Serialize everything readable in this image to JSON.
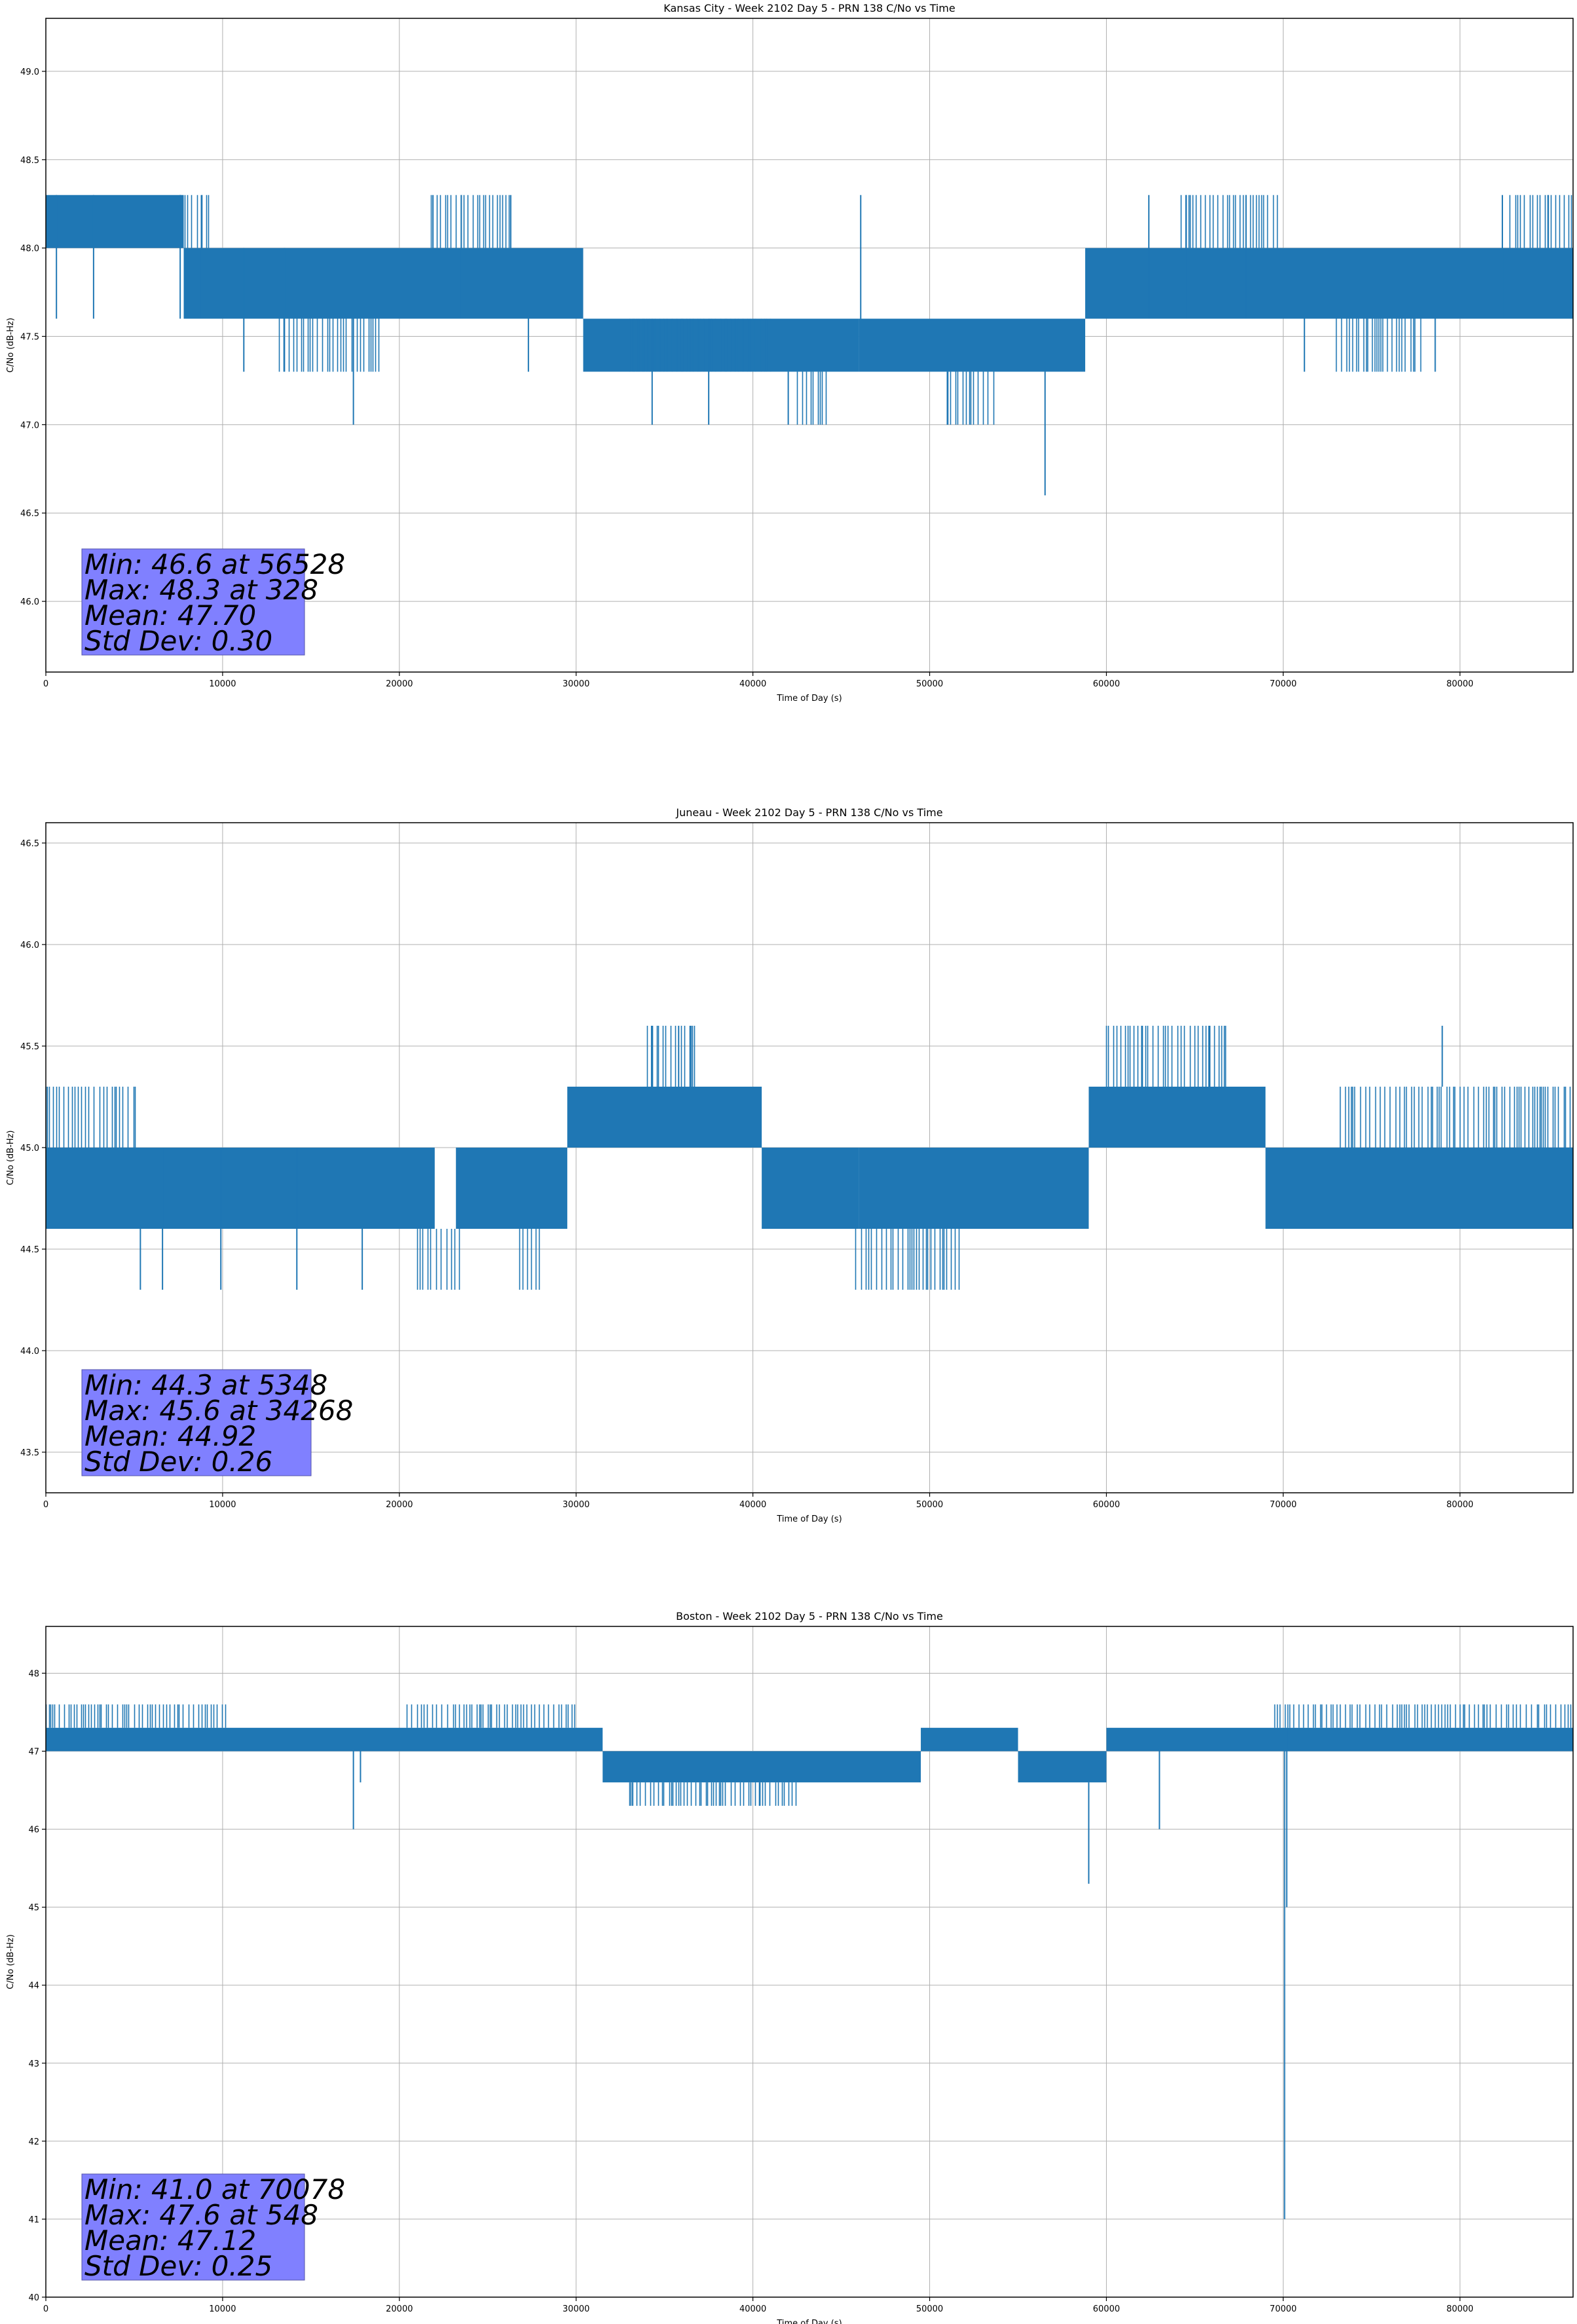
{
  "chart_data": [
    {
      "type": "line",
      "title": "Kansas City - Week 2102 Day 5 - PRN 138 C/No vs Time",
      "xlabel": "Time of Day (s)",
      "ylabel": "C/No (dB-Hz)",
      "xlim": [
        0,
        86400
      ],
      "ylim": [
        45.6,
        49.3
      ],
      "xticks": [
        0,
        10000,
        20000,
        30000,
        40000,
        50000,
        60000,
        70000,
        80000
      ],
      "xtick_labels": [
        "0",
        "10000",
        "20000",
        "30000",
        "40000",
        "50000",
        "60000",
        "70000",
        "80000"
      ],
      "yticks": [
        46.0,
        46.5,
        47.0,
        47.5,
        48.0,
        48.5,
        49.0
      ],
      "ytick_labels": [
        "46.0",
        "46.5",
        "47.0",
        "47.5",
        "48.0",
        "48.5",
        "49.0"
      ],
      "grid": true,
      "color": "#1f77b4",
      "series": [
        {
          "bands": [
            {
              "x0": 0,
              "x1": 7800,
              "lo": 48.0,
              "hi": 48.3
            },
            {
              "x0": 7800,
              "x1": 30400,
              "lo": 47.6,
              "hi": 48.0
            },
            {
              "x0": 30400,
              "x1": 46000,
              "lo": 47.3,
              "hi": 47.6
            },
            {
              "x0": 46000,
              "x1": 58800,
              "lo": 47.3,
              "hi": 47.6
            },
            {
              "x0": 58800,
              "x1": 86400,
              "lo": 47.6,
              "hi": 48.0
            }
          ],
          "spikes": [
            {
              "x": 600,
              "lo": 47.6,
              "hi": 48.3
            },
            {
              "x": 2700,
              "lo": 47.6,
              "hi": 48.3
            },
            {
              "x": 7600,
              "lo": 47.6,
              "hi": 48.3
            },
            {
              "x": 8800,
              "lo": 47.6,
              "hi": 48.3
            },
            {
              "x": 11200,
              "lo": 47.3,
              "hi": 48.0
            },
            {
              "x": 13500,
              "lo": 47.3,
              "hi": 48.0
            },
            {
              "x": 17400,
              "lo": 47.0,
              "hi": 47.6
            },
            {
              "x": 21900,
              "lo": 47.6,
              "hi": 48.3
            },
            {
              "x": 23500,
              "lo": 47.6,
              "hi": 48.3
            },
            {
              "x": 26300,
              "lo": 47.6,
              "hi": 48.3
            },
            {
              "x": 27300,
              "lo": 47.3,
              "hi": 47.6
            },
            {
              "x": 34300,
              "lo": 47.0,
              "hi": 47.6
            },
            {
              "x": 37500,
              "lo": 47.0,
              "hi": 47.6
            },
            {
              "x": 42000,
              "lo": 47.0,
              "hi": 47.3
            },
            {
              "x": 46100,
              "lo": 47.6,
              "hi": 48.3
            },
            {
              "x": 51000,
              "lo": 47.0,
              "hi": 47.3
            },
            {
              "x": 56528,
              "lo": 46.6,
              "hi": 47.3
            },
            {
              "x": 62400,
              "lo": 47.6,
              "hi": 48.3
            },
            {
              "x": 64500,
              "lo": 47.6,
              "hi": 48.3
            },
            {
              "x": 67900,
              "lo": 47.6,
              "hi": 48.3
            },
            {
              "x": 71200,
              "lo": 47.3,
              "hi": 47.6
            },
            {
              "x": 78600,
              "lo": 47.3,
              "hi": 47.6
            },
            {
              "x": 82400,
              "lo": 47.6,
              "hi": 48.3
            },
            {
              "x": 85000,
              "lo": 47.6,
              "hi": 48.3
            }
          ],
          "dense": [
            {
              "x0": 7600,
              "x1": 9300,
              "lo": 48.0,
              "hi": 48.3
            },
            {
              "x0": 13200,
              "x1": 19000,
              "lo": 47.3,
              "hi": 47.6
            },
            {
              "x0": 21800,
              "x1": 26400,
              "lo": 48.0,
              "hi": 48.3
            },
            {
              "x0": 33000,
              "x1": 41000,
              "lo": 47.3,
              "hi": 47.6
            },
            {
              "x0": 42500,
              "x1": 44300,
              "lo": 47.0,
              "hi": 47.3
            },
            {
              "x0": 51000,
              "x1": 53700,
              "lo": 47.0,
              "hi": 47.3
            },
            {
              "x0": 64200,
              "x1": 69800,
              "lo": 48.0,
              "hi": 48.3
            },
            {
              "x0": 73000,
              "x1": 77800,
              "lo": 47.3,
              "hi": 47.6
            },
            {
              "x0": 82800,
              "x1": 86400,
              "lo": 48.0,
              "hi": 48.3
            }
          ]
        }
      ],
      "stats": [
        "Min: 46.6 at 56528",
        "Max: 48.3 at 328",
        "Mean: 47.70",
        "Std Dev: 0.30"
      ]
    },
    {
      "type": "line",
      "title": "Juneau - Week 2102 Day 5 - PRN 138 C/No vs Time",
      "xlabel": "Time of Day (s)",
      "ylabel": "C/No (dB-Hz)",
      "xlim": [
        0,
        86400
      ],
      "ylim": [
        43.3,
        46.6
      ],
      "xticks": [
        0,
        10000,
        20000,
        30000,
        40000,
        50000,
        60000,
        70000,
        80000
      ],
      "xtick_labels": [
        "0",
        "10000",
        "20000",
        "30000",
        "40000",
        "50000",
        "60000",
        "70000",
        "80000"
      ],
      "yticks": [
        43.5,
        44.0,
        44.5,
        45.0,
        45.5,
        46.0,
        46.5
      ],
      "ytick_labels": [
        "43.5",
        "44.0",
        "44.5",
        "45.0",
        "45.5",
        "46.0",
        "46.5"
      ],
      "grid": true,
      "color": "#1f77b4",
      "series": [
        {
          "bands": [
            {
              "x0": 0,
              "x1": 22000,
              "lo": 44.6,
              "hi": 45.0
            },
            {
              "x0": 23200,
              "x1": 29500,
              "lo": 44.6,
              "hi": 45.0
            },
            {
              "x0": 29500,
              "x1": 40500,
              "lo": 45.0,
              "hi": 45.3
            },
            {
              "x0": 40500,
              "x1": 46000,
              "lo": 44.6,
              "hi": 45.0
            },
            {
              "x0": 46000,
              "x1": 59000,
              "lo": 44.6,
              "hi": 45.0
            },
            {
              "x0": 59000,
              "x1": 69000,
              "lo": 45.0,
              "hi": 45.3
            },
            {
              "x0": 69000,
              "x1": 86400,
              "lo": 44.6,
              "hi": 45.0
            }
          ],
          "spikes": [
            {
              "x": 5348,
              "lo": 44.3,
              "hi": 45.0
            },
            {
              "x": 6600,
              "lo": 44.3,
              "hi": 45.0
            },
            {
              "x": 9900,
              "lo": 44.3,
              "hi": 45.0
            },
            {
              "x": 14200,
              "lo": 44.3,
              "hi": 45.0
            },
            {
              "x": 17900,
              "lo": 44.3,
              "hi": 45.0
            },
            {
              "x": 34268,
              "lo": 45.3,
              "hi": 45.6
            },
            {
              "x": 35800,
              "lo": 45.3,
              "hi": 45.6
            },
            {
              "x": 36500,
              "lo": 45.3,
              "hi": 45.6
            },
            {
              "x": 62000,
              "lo": 45.3,
              "hi": 45.6
            },
            {
              "x": 65800,
              "lo": 45.3,
              "hi": 45.6
            },
            {
              "x": 79000,
              "lo": 45.3,
              "hi": 45.6
            }
          ],
          "dense": [
            {
              "x0": 0,
              "x1": 5200,
              "lo": 45.0,
              "hi": 45.3
            },
            {
              "x0": 21000,
              "x1": 23500,
              "lo": 44.3,
              "hi": 44.6
            },
            {
              "x0": 26800,
              "x1": 28000,
              "lo": 44.3,
              "hi": 44.6
            },
            {
              "x0": 34000,
              "x1": 36800,
              "lo": 45.3,
              "hi": 45.6
            },
            {
              "x0": 45800,
              "x1": 51800,
              "lo": 44.3,
              "hi": 44.6
            },
            {
              "x0": 60000,
              "x1": 66800,
              "lo": 45.3,
              "hi": 45.6
            },
            {
              "x0": 73200,
              "x1": 86400,
              "lo": 45.0,
              "hi": 45.3
            }
          ]
        }
      ],
      "stats": [
        "Min: 44.3 at 5348",
        "Max: 45.6 at 34268",
        "Mean: 44.92",
        "Std Dev: 0.26"
      ]
    },
    {
      "type": "line",
      "title": "Boston - Week 2102 Day 5 - PRN 138 C/No vs Time",
      "xlabel": "Time of Day (s)",
      "ylabel": "C/No (dB-Hz)",
      "xlim": [
        0,
        86400
      ],
      "ylim": [
        40.0,
        48.6
      ],
      "xticks": [
        0,
        10000,
        20000,
        30000,
        40000,
        50000,
        60000,
        70000,
        80000
      ],
      "xtick_labels": [
        "0",
        "10000",
        "20000",
        "30000",
        "40000",
        "50000",
        "60000",
        "70000",
        "80000"
      ],
      "yticks": [
        40,
        41,
        42,
        43,
        44,
        45,
        46,
        47,
        48
      ],
      "ytick_labels": [
        "40",
        "41",
        "42",
        "43",
        "44",
        "45",
        "46",
        "47",
        "48"
      ],
      "grid": true,
      "color": "#1f77b4",
      "series": [
        {
          "bands": [
            {
              "x0": 0,
              "x1": 31500,
              "lo": 47.0,
              "hi": 47.3
            },
            {
              "x0": 31500,
              "x1": 49500,
              "lo": 46.6,
              "hi": 47.0
            },
            {
              "x0": 49500,
              "x1": 55000,
              "lo": 47.0,
              "hi": 47.3
            },
            {
              "x0": 55000,
              "x1": 60000,
              "lo": 46.6,
              "hi": 47.0
            },
            {
              "x0": 60000,
              "x1": 86400,
              "lo": 47.0,
              "hi": 47.3
            }
          ],
          "spikes": [
            {
              "x": 17400,
              "lo": 46.0,
              "hi": 47.0
            },
            {
              "x": 17800,
              "lo": 46.6,
              "hi": 47.0
            },
            {
              "x": 33200,
              "lo": 46.3,
              "hi": 46.6
            },
            {
              "x": 40400,
              "lo": 46.3,
              "hi": 46.6
            },
            {
              "x": 59000,
              "lo": 45.3,
              "hi": 46.6
            },
            {
              "x": 63000,
              "lo": 46.0,
              "hi": 47.0
            },
            {
              "x": 70078,
              "lo": 41.0,
              "hi": 47.0
            },
            {
              "x": 70200,
              "lo": 45.0,
              "hi": 47.3
            }
          ],
          "dense": [
            {
              "x0": 0,
              "x1": 10200,
              "lo": 47.3,
              "hi": 47.6
            },
            {
              "x0": 20400,
              "x1": 30000,
              "lo": 47.3,
              "hi": 47.6
            },
            {
              "x0": 33000,
              "x1": 42500,
              "lo": 46.3,
              "hi": 46.6
            },
            {
              "x0": 69500,
              "x1": 86400,
              "lo": 47.3,
              "hi": 47.6
            }
          ]
        }
      ],
      "stats": [
        "Min: 41.0 at 70078",
        "Max: 47.6 at 548",
        "Mean: 47.12",
        "Std Dev: 0.25"
      ]
    }
  ]
}
